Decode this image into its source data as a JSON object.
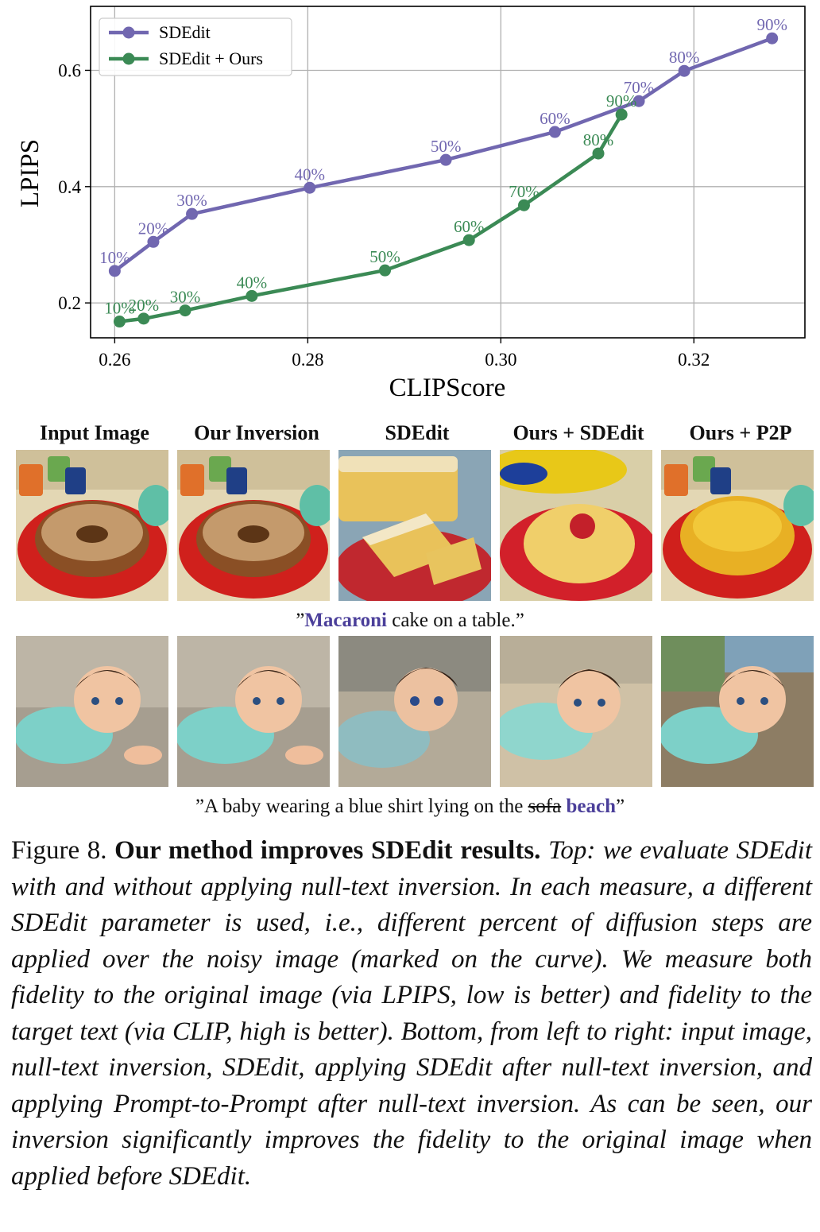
{
  "chart_data": {
    "type": "line",
    "xlabel": "CLIPScore",
    "ylabel": "LPIPS",
    "xlim": [
      0.2575,
      0.3315
    ],
    "ylim": [
      0.14,
      0.71
    ],
    "xticks": [
      0.26,
      0.28,
      0.3,
      0.32
    ],
    "xtick_labels": [
      "0.26",
      "0.28",
      "0.30",
      "0.32"
    ],
    "yticks": [
      0.2,
      0.4,
      0.6
    ],
    "ytick_labels": [
      "0.2",
      "0.4",
      "0.6"
    ],
    "grid": true,
    "legend_position": "top-left",
    "series": [
      {
        "name": "SDEdit",
        "color": "#7167b0",
        "x": [
          0.26,
          0.264,
          0.268,
          0.2802,
          0.2943,
          0.3056,
          0.3143,
          0.319,
          0.3281
        ],
        "y": [
          0.255,
          0.305,
          0.353,
          0.398,
          0.446,
          0.494,
          0.547,
          0.599,
          0.655
        ],
        "labels": [
          "10%",
          "20%",
          "30%",
          "40%",
          "50%",
          "60%",
          "70%",
          "80%",
          "90%"
        ]
      },
      {
        "name": "SDEdit + Ours",
        "color": "#3b8a55",
        "x": [
          0.2605,
          0.263,
          0.2673,
          0.2742,
          0.288,
          0.2967,
          0.3024,
          0.3101,
          0.3125
        ],
        "y": [
          0.168,
          0.173,
          0.187,
          0.212,
          0.256,
          0.308,
          0.368,
          0.457,
          0.524
        ],
        "labels": [
          "10%",
          "20%",
          "30%",
          "40%",
          "50%",
          "60%",
          "70%",
          "80%",
          "90%"
        ]
      }
    ]
  },
  "columns": [
    "Input Image",
    "Our Inversion",
    "SDEdit",
    "Ours + SDEdit",
    "Ours + P2P"
  ],
  "rows": [
    {
      "prompt_open": "”",
      "prompt_highlight": "Macaroni",
      "prompt_rest": " cake on a table.”"
    },
    {
      "prompt_pre": "”A baby wearing a blue shirt lying on the ",
      "prompt_struck": "sofa",
      "prompt_highlight": "beach",
      "prompt_close": "”"
    }
  ],
  "caption": {
    "figure_label": "Figure 8.",
    "bold_title": "Our method improves SDEdit results.",
    "body": "Top: we evalu­ate SDEdit with and without applying null-text inversion. In each measure, a different SDEdit parameter is used, i.e., different per­cent of diffusion steps are applied over the noisy image (marked on the curve). We measure both fidelity to the original image (via LPIPS, low is better) and fidelity to the target text (via CLIP, high is better). Bottom, from left to right: input image, null-text inver­sion, SDEdit, applying SDEdit after null-text inversion, and ap­plying Prompt-to-Prompt after null-text inversion. As can be seen, our inversion significantly improves the fidelity to the original im­age when applied before SDEdit."
  }
}
